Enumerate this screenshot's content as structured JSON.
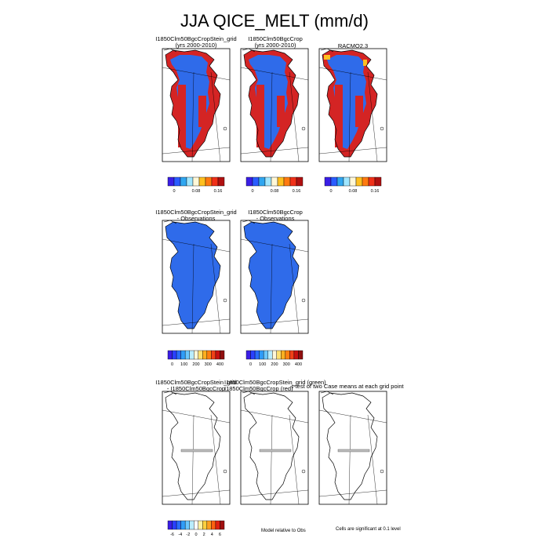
{
  "figure_title": "JJA QICE_MELT (mm/d)",
  "panels": [
    {
      "row": 0,
      "col": 0,
      "title_line1": "I1850Clm50BgcCropStein_grid",
      "title_line2": "(yrs 2000-2010)",
      "fill": "melt"
    },
    {
      "row": 0,
      "col": 1,
      "title_line1": "I1850Clm50BgcCrop",
      "title_line2": "(yrs 2000-2010)",
      "fill": "melt"
    },
    {
      "row": 0,
      "col": 2,
      "title_line1": "RACMO2.3",
      "title_line2": "",
      "fill": "racmo"
    },
    {
      "row": 1,
      "col": 0,
      "title_line1": "I1850Clm50BgcCropStein_grid",
      "title_line2": "- Observations",
      "fill": "bias"
    },
    {
      "row": 1,
      "col": 1,
      "title_line1": "I1850Clm50BgcCrop",
      "title_line2": "- Observations",
      "fill": "bias"
    },
    {
      "row": 2,
      "col": 0,
      "title_line1": "I1850Clm50BgcCropStein_grid",
      "title_line2": "- I1850Clm50BgcCrop",
      "fill": "none"
    },
    {
      "row": 2,
      "col": 1,
      "title_line1": "I1850Clm50BgcCropStein_grid (green)",
      "title_line2": "I1850Clm50BgcCrop (red)",
      "fill": "none"
    },
    {
      "row": 2,
      "col": 2,
      "title_line1": "t-test of two Case means at each grid point",
      "title_line2": "",
      "fill": "none"
    }
  ],
  "colorbars": [
    {
      "id": "cb-row1-a",
      "labels": [
        "0",
        "0.08",
        "0.16"
      ],
      "colors": [
        "#3a1ee6",
        "#2a5cff",
        "#2fa6f0",
        "#9fe6ff",
        "#fff8d8",
        "#ffc020",
        "#ff7a10",
        "#f03018",
        "#b01010"
      ]
    },
    {
      "id": "cb-row1-b",
      "labels": [
        "0",
        "0.08",
        "0.16"
      ],
      "colors": [
        "#3a1ee6",
        "#2a5cff",
        "#2fa6f0",
        "#9fe6ff",
        "#fff8d8",
        "#ffc020",
        "#ff7a10",
        "#f03018",
        "#b01010"
      ]
    },
    {
      "id": "cb-row1-c",
      "labels": [
        "0",
        "0.08",
        "0.16"
      ],
      "colors": [
        "#3a1ee6",
        "#2a5cff",
        "#2fa6f0",
        "#9fe6ff",
        "#fff8d8",
        "#ffc020",
        "#ff7a10",
        "#f03018",
        "#b01010"
      ]
    },
    {
      "id": "cb-row2-a",
      "labels": [
        "0",
        "100",
        "200",
        "300",
        "400"
      ],
      "colors": [
        "#3a1ee6",
        "#2a40ff",
        "#2a6cff",
        "#2f9cf8",
        "#6cc8ff",
        "#b8ecff",
        "#fff8d8",
        "#ffe070",
        "#ffb020",
        "#ff8010",
        "#f04018",
        "#c81010",
        "#901010"
      ]
    },
    {
      "id": "cb-row2-b",
      "labels": [
        "0",
        "100",
        "200",
        "300",
        "400"
      ],
      "colors": [
        "#3a1ee6",
        "#2a40ff",
        "#2a6cff",
        "#2f9cf8",
        "#6cc8ff",
        "#b8ecff",
        "#fff8d8",
        "#ffe070",
        "#ffb020",
        "#ff8010",
        "#f04018",
        "#c81010",
        "#901010"
      ]
    },
    {
      "id": "cb-row3-a",
      "labels": [
        "-6",
        "-4",
        "-2",
        "0",
        "2",
        "4",
        "6"
      ],
      "colors": [
        "#3a1ee6",
        "#2a40ff",
        "#2a6cff",
        "#2f9cf8",
        "#6cc8ff",
        "#b8ecff",
        "#ffffff",
        "#fff0a0",
        "#ffd040",
        "#ffa020",
        "#ff6010",
        "#e02010",
        "#a01010"
      ]
    }
  ],
  "notes": {
    "model_relative": "Model relative to Obs",
    "significance": "Cells are significant at 0.1 level"
  },
  "chart_data": {
    "type": "heatmap",
    "title": "JJA QICE_MELT (mm/d)",
    "variable": "QICE_MELT",
    "season": "JJA",
    "units": "mm/d",
    "colorbar_ticks": {
      "absolute": [
        0,
        0.08,
        0.16
      ],
      "difference_vs_obs": [
        0,
        100,
        200,
        300,
        400
      ],
      "case_difference": [
        -6,
        -4,
        -2,
        0,
        2,
        4,
        6
      ]
    }
  },
  "colors": {
    "ice_blue": "#2f6bea",
    "melt_red": "#d42424",
    "coast": "#000000"
  }
}
